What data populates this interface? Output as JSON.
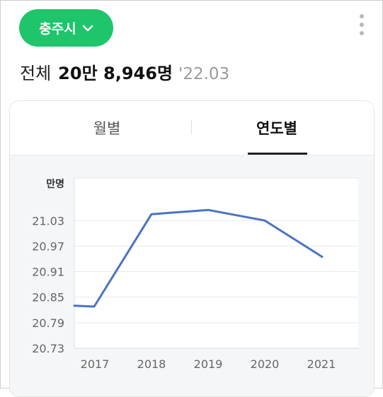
{
  "region_selector": {
    "label": "충주시"
  },
  "summary": {
    "label": "전체",
    "value": "20만 8,946명",
    "date": "'22.03"
  },
  "tabs": [
    {
      "label": "월별",
      "active": false
    },
    {
      "label": "연도별",
      "active": true
    }
  ],
  "chart_data": {
    "type": "line",
    "unit_label": "만명",
    "x": [
      "2016-12",
      "2017-03",
      "2018",
      "2019",
      "2020",
      "2021"
    ],
    "categories": [
      "2017",
      "2018",
      "2019",
      "2020",
      "2021"
    ],
    "yticks": [
      "21.03",
      "20.97",
      "20.91",
      "20.85",
      "20.79",
      "20.73"
    ],
    "ylim": [
      20.73,
      21.13
    ],
    "series": [
      {
        "values": [
          20.83,
          20.828,
          21.045,
          21.055,
          21.03,
          20.945
        ]
      }
    ],
    "grid": true,
    "colors": {
      "line": "#4a72c4"
    }
  }
}
